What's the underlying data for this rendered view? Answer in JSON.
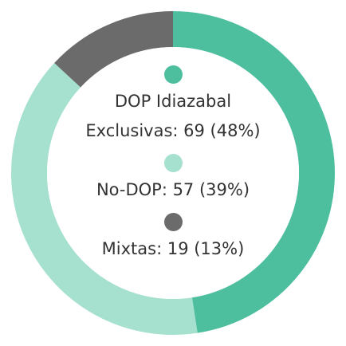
{
  "chart_data": {
    "type": "donut",
    "categories": [
      "DOP Idiazabal Exclusivas: 69 (48%)",
      "No-DOP: 57 (39%)",
      "Mixtas: 19 (13%)"
    ],
    "values": [
      69,
      57,
      19
    ],
    "colors": [
      "#4dbf9f",
      "#a6e0cf",
      "#6b6b6b"
    ]
  }
}
